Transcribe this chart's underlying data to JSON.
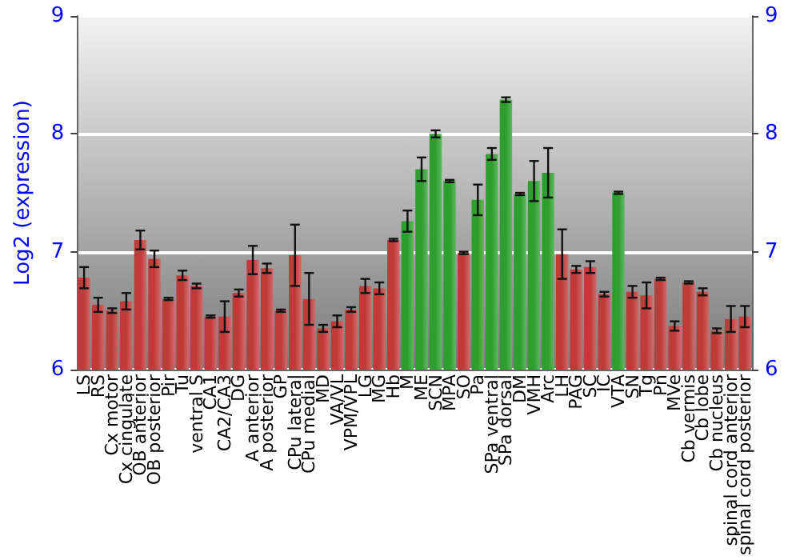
{
  "chart_data": {
    "type": "bar",
    "ylabel": "Log2 (expression)",
    "categories": [
      "LS",
      "RS",
      "Cx motor",
      "Cx cingulate",
      "OB anterior",
      "OB posterior",
      "Pir",
      "Tu",
      "ventral S",
      "CA1",
      "CA2/CA3",
      "DG",
      "A anterior",
      "A posterior",
      "GP",
      "CPu lateral",
      "CPu medial",
      "MD",
      "VA/VL",
      "VPM/VPL",
      "LG",
      "MG",
      "Hb",
      "M",
      "ME",
      "SCN",
      "MPA",
      "SO",
      "Pa",
      "SPa ventral",
      "SPa dorsal",
      "DM",
      "VMH",
      "Arc",
      "LH",
      "PAG",
      "SC",
      "IC",
      "VTA",
      "SN",
      "Tg",
      "Pn",
      "MVe",
      "Cb vermis",
      "Cb lobe",
      "Cb nucleus",
      "spinal cord anterior",
      "spinal cord posterior"
    ],
    "values": [
      6.78,
      6.55,
      6.5,
      6.58,
      7.1,
      6.94,
      6.6,
      6.8,
      6.71,
      6.45,
      6.45,
      6.65,
      6.93,
      6.86,
      6.5,
      6.97,
      6.6,
      6.35,
      6.41,
      6.51,
      6.71,
      6.69,
      7.1,
      7.26,
      7.7,
      8.0,
      7.6,
      6.99,
      7.44,
      7.83,
      8.29,
      7.49,
      7.6,
      7.67,
      6.98,
      6.85,
      6.87,
      6.64,
      7.5,
      6.66,
      6.63,
      6.77,
      6.37,
      6.74,
      6.66,
      6.33,
      6.43,
      6.45
    ],
    "errors": [
      0.09,
      0.06,
      0.02,
      0.07,
      0.08,
      0.07,
      0.01,
      0.04,
      0.02,
      0.01,
      0.13,
      0.03,
      0.12,
      0.04,
      0.01,
      0.26,
      0.22,
      0.03,
      0.05,
      0.02,
      0.06,
      0.05,
      0.01,
      0.09,
      0.1,
      0.03,
      0.01,
      0.01,
      0.13,
      0.05,
      0.02,
      0.01,
      0.17,
      0.21,
      0.21,
      0.03,
      0.05,
      0.02,
      0.01,
      0.05,
      0.11,
      0.01,
      0.04,
      0.01,
      0.03,
      0.02,
      0.11,
      0.09
    ],
    "colors": [
      "#c03a3a",
      "#c03a3a",
      "#c03a3a",
      "#c03a3a",
      "#c03a3a",
      "#c03a3a",
      "#c03a3a",
      "#c03a3a",
      "#c03a3a",
      "#c03a3a",
      "#c03a3a",
      "#c03a3a",
      "#c03a3a",
      "#c03a3a",
      "#c03a3a",
      "#c03a3a",
      "#c03a3a",
      "#c03a3a",
      "#c03a3a",
      "#c03a3a",
      "#c03a3a",
      "#c03a3a",
      "#c03a3a",
      "#2e9e2e",
      "#2e9e2e",
      "#2e9e2e",
      "#2e9e2e",
      "#c03a3a",
      "#2e9e2e",
      "#2e9e2e",
      "#2e9e2e",
      "#2e9e2e",
      "#2e9e2e",
      "#2e9e2e",
      "#c03a3a",
      "#c03a3a",
      "#c03a3a",
      "#c03a3a",
      "#2e9e2e",
      "#c03a3a",
      "#c03a3a",
      "#c03a3a",
      "#c03a3a",
      "#c03a3a",
      "#c03a3a",
      "#c03a3a",
      "#c03a3a",
      "#c03a3a"
    ],
    "ylim": [
      6,
      9
    ],
    "yticks": [
      6,
      7,
      8,
      9
    ],
    "y2lim": [
      6,
      9
    ],
    "y2ticks": [
      6,
      7,
      8,
      9
    ],
    "grid": "y"
  }
}
